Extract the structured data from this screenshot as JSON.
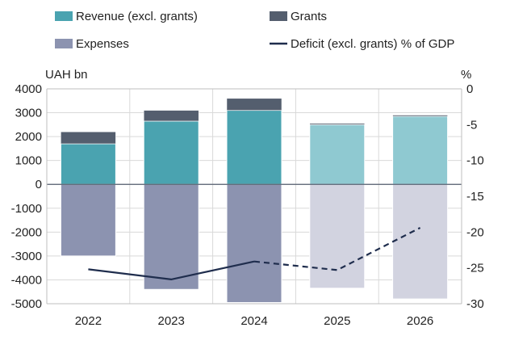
{
  "chart_data": {
    "type": "bar",
    "categories": [
      "2022",
      "2023",
      "2024",
      "2025",
      "2026"
    ],
    "series": [
      {
        "name": "Revenue (excl. grants)",
        "kind": "bar",
        "axis": "left",
        "values": [
          1700,
          2650,
          3100,
          2500,
          2850
        ],
        "colors": [
          "#4aa3b0",
          "#4aa3b0",
          "#4aa3b0",
          "#8fc9d1",
          "#8fc9d1"
        ]
      },
      {
        "name": "Grants",
        "kind": "bar-stacked",
        "axis": "left",
        "values": [
          500,
          450,
          500,
          50,
          50
        ],
        "color": "#545e6e"
      },
      {
        "name": "Expenses",
        "kind": "bar",
        "axis": "left",
        "values": [
          -3000,
          -4400,
          -4950,
          -4350,
          -4800
        ],
        "colors": [
          "#8c93b0",
          "#8c93b0",
          "#8c93b0",
          "#d2d3e0",
          "#d2d3e0"
        ]
      },
      {
        "name": "Deficit (excl. grants) % of GDP",
        "kind": "line",
        "axis": "right",
        "values": [
          -25.2,
          -26.6,
          -24.1,
          -25.3,
          -19.4
        ],
        "color": "#1f2d4d",
        "solid_through": "2024"
      }
    ],
    "left_axis": {
      "unit_label": "UAH bn",
      "min": -5000,
      "max": 4000,
      "ticks": [
        "4000",
        "3000",
        "2000",
        "1000",
        "0",
        "-1000",
        "-2000",
        "-3000",
        "-4000",
        "-5000"
      ]
    },
    "right_axis": {
      "unit_label": "%",
      "min": -30,
      "max": 0,
      "ticks": [
        "0",
        "-5",
        "-10",
        "-15",
        "-20",
        "-25",
        "-30"
      ]
    },
    "grid": true,
    "legend": "top"
  }
}
